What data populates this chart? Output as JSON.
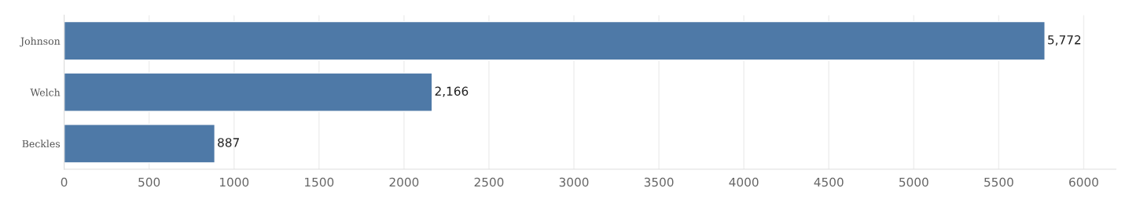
{
  "chart_data": {
    "type": "bar",
    "orientation": "horizontal",
    "categories": [
      "Johnson",
      "Welch",
      "Beckles"
    ],
    "values": [
      5772,
      2166,
      887
    ],
    "value_labels": [
      "5,772",
      "2,166",
      "887"
    ],
    "color": "#4e79a7",
    "xlim": [
      0,
      6190
    ],
    "xticks": [
      0,
      500,
      1000,
      1500,
      2000,
      2500,
      3000,
      3500,
      4000,
      4500,
      5000,
      5500,
      6000
    ],
    "grid": "x"
  }
}
